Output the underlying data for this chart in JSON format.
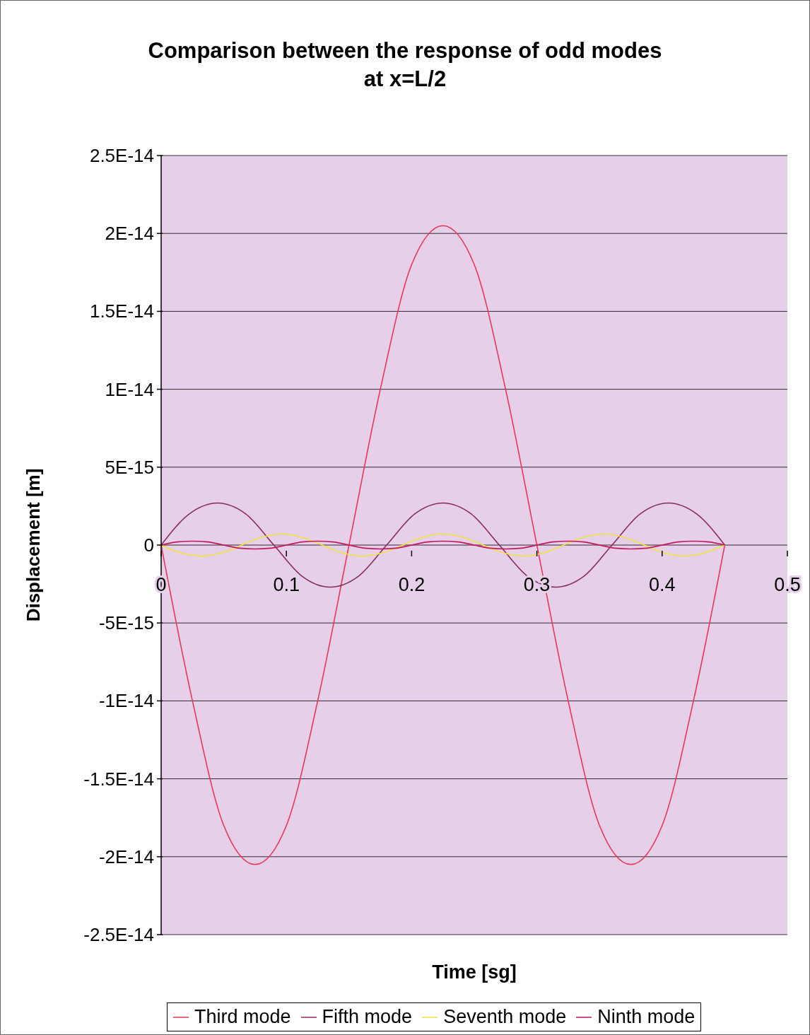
{
  "chart_data": {
    "type": "line",
    "title": "Comparison between the response of odd modes\nat x=L/2",
    "xlabel": "Time [sg]",
    "ylabel": "Displacement [m]",
    "xlim": [
      0,
      0.5
    ],
    "xticks": [
      0,
      0.1,
      0.2,
      0.3,
      0.4,
      0.5
    ],
    "ylim": [
      -2.5e-14,
      2.5e-14
    ],
    "yticks": [
      {
        "value": -2.5e-14,
        "label": "-2.5E-14"
      },
      {
        "value": -2e-14,
        "label": "-2E-14"
      },
      {
        "value": -1.5e-14,
        "label": "-1.5E-14"
      },
      {
        "value": -1e-14,
        "label": "-1E-14"
      },
      {
        "value": -5e-15,
        "label": "-5E-15"
      },
      {
        "value": 0,
        "label": "0"
      },
      {
        "value": 5e-15,
        "label": "5E-15"
      },
      {
        "value": 1e-14,
        "label": "1E-14"
      },
      {
        "value": 1.5e-14,
        "label": "1.5E-14"
      },
      {
        "value": 2e-14,
        "label": "2E-14"
      },
      {
        "value": 2.5e-14,
        "label": "2.5E-14"
      }
    ],
    "grid": "y",
    "legend": "bottom",
    "marker": "none",
    "line_style": "solid",
    "series": [
      {
        "name": "Third mode",
        "color": "#e8365a",
        "x": [
          0,
          0.025,
          0.05,
          0.075,
          0.1,
          0.125,
          0.15,
          0.175,
          0.2,
          0.225,
          0.25,
          0.275,
          0.3,
          0.325,
          0.35,
          0.375,
          0.4,
          0.425,
          0.45
        ],
        "values": [
          0,
          -1e-14,
          -1.8e-14,
          -2.05e-14,
          -1.8e-14,
          -1e-14,
          0,
          1e-14,
          1.8e-14,
          2.05e-14,
          1.8e-14,
          1e-14,
          0,
          -1e-14,
          -1.8e-14,
          -2.05e-14,
          -1.8e-14,
          -1e-14,
          0
        ]
      },
      {
        "name": "Fifth mode",
        "color": "#8b2a5e",
        "x": [
          0,
          0.0225,
          0.045,
          0.0675,
          0.09,
          0.1125,
          0.135,
          0.1575,
          0.18,
          0.2025,
          0.225,
          0.2475,
          0.27,
          0.2925,
          0.315,
          0.3375,
          0.36,
          0.3825,
          0.405,
          0.4275,
          0.45
        ],
        "values": [
          0,
          2e-15,
          2.7e-15,
          2e-15,
          0,
          -2e-15,
          -2.7e-15,
          -2e-15,
          0,
          2e-15,
          2.7e-15,
          2e-15,
          0,
          -2e-15,
          -2.7e-15,
          -2e-15,
          0,
          2e-15,
          2.7e-15,
          2e-15,
          0
        ]
      },
      {
        "name": "Seventh mode",
        "color": "#f2e33c",
        "x": [
          0,
          0.0161,
          0.0321,
          0.0482,
          0.0643,
          0.0804,
          0.0964,
          0.1125,
          0.1286,
          0.1446,
          0.1607,
          0.1768,
          0.1929,
          0.2089,
          0.225,
          0.2411,
          0.2571,
          0.2732,
          0.2893,
          0.3054,
          0.3214,
          0.3375,
          0.3536,
          0.3696,
          0.3857,
          0.4018,
          0.4179,
          0.4339,
          0.45
        ],
        "values": [
          0,
          -5e-16,
          -7e-16,
          -5e-16,
          0,
          5e-16,
          7e-16,
          5e-16,
          0,
          -5e-16,
          -7e-16,
          -5e-16,
          0,
          5e-16,
          7e-16,
          5e-16,
          0,
          -5e-16,
          -7e-16,
          -5e-16,
          0,
          5e-16,
          7e-16,
          5e-16,
          0,
          -5e-16,
          -7e-16,
          -5e-16,
          0
        ]
      },
      {
        "name": "Ninth mode",
        "color": "#c2185b",
        "x": [
          0,
          0.0125,
          0.025,
          0.0375,
          0.05,
          0.0625,
          0.075,
          0.0875,
          0.1,
          0.1125,
          0.125,
          0.1375,
          0.15,
          0.1625,
          0.175,
          0.1875,
          0.2,
          0.2125,
          0.225,
          0.2375,
          0.25,
          0.2625,
          0.275,
          0.2875,
          0.3,
          0.3125,
          0.325,
          0.3375,
          0.35,
          0.3625,
          0.375,
          0.3875,
          0.4,
          0.4125,
          0.425,
          0.4375,
          0.45
        ],
        "values": [
          0,
          2e-16,
          2.5e-16,
          2e-16,
          0,
          -2e-16,
          -2.5e-16,
          -2e-16,
          0,
          2e-16,
          2.5e-16,
          2e-16,
          0,
          -2e-16,
          -2.5e-16,
          -2e-16,
          0,
          2e-16,
          2.5e-16,
          2e-16,
          0,
          -2e-16,
          -2.5e-16,
          -2e-16,
          0,
          2e-16,
          2.5e-16,
          2e-16,
          0,
          -2e-16,
          -2.5e-16,
          -2e-16,
          0,
          2e-16,
          2.5e-16,
          2e-16,
          0
        ]
      }
    ]
  }
}
